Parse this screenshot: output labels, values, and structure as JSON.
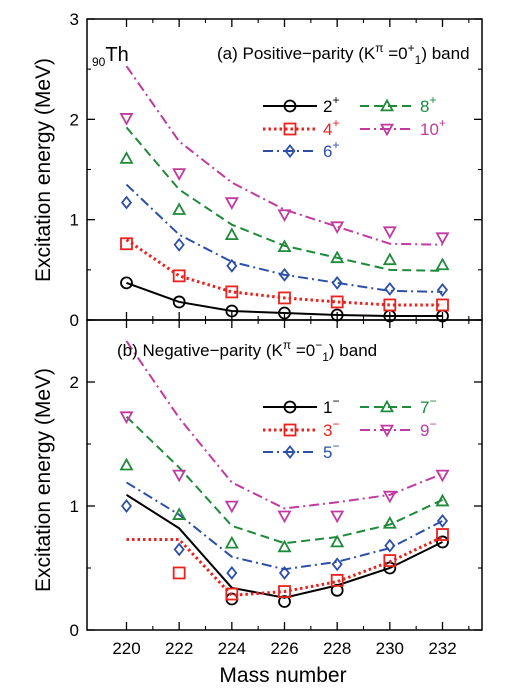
{
  "chart_data": [
    {
      "type": "line",
      "panel_label": "(a)",
      "title_prefix": "(a) Positive−parity (K",
      "title_sup1": "π",
      "title_mid": " =0",
      "title_sup2": "+",
      "title_sub": "1",
      "title_suffix": ") band",
      "nucleus_sub": "90",
      "nucleus": "Th",
      "ylabel": "Excitation energy (MeV)",
      "xlim": [
        218.5,
        233.5
      ],
      "ylim": [
        0,
        3
      ],
      "yticks": [
        0,
        1,
        2,
        3
      ],
      "x": [
        220,
        222,
        224,
        226,
        228,
        230,
        232
      ],
      "series": [
        {
          "name_base": "2",
          "name_sup": "+",
          "color": "#000000",
          "marker": "circle",
          "dash": "solid",
          "points": [
            0.37,
            0.18,
            0.09,
            0.07,
            0.05,
            0.04,
            0.04
          ],
          "line": [
            0.37,
            0.18,
            0.09,
            0.07,
            0.05,
            0.04,
            0.04
          ]
        },
        {
          "name_base": "4",
          "name_sup": "+",
          "color": "#e8231f",
          "marker": "square",
          "dash": "dotted",
          "points": [
            0.76,
            0.44,
            0.28,
            0.22,
            0.18,
            0.15,
            0.15
          ],
          "line": [
            0.8,
            0.44,
            0.28,
            0.22,
            0.18,
            0.15,
            0.15
          ]
        },
        {
          "name_base": "6",
          "name_sup": "+",
          "color": "#2c4fa8",
          "marker": "diamond",
          "dash": "dashdot",
          "points": [
            1.17,
            0.75,
            0.54,
            0.45,
            0.37,
            0.31,
            0.3
          ],
          "line": [
            1.35,
            0.85,
            0.58,
            0.45,
            0.37,
            0.29,
            0.28
          ]
        },
        {
          "name_base": "8",
          "name_sup": "+",
          "color": "#1e8a3a",
          "marker": "triangle-up",
          "dash": "dashed",
          "points": [
            1.61,
            1.1,
            0.85,
            0.73,
            0.62,
            0.6,
            0.55
          ],
          "line": [
            1.92,
            1.3,
            0.95,
            0.74,
            0.62,
            0.5,
            0.49
          ]
        },
        {
          "name_base": "10",
          "name_sup": "+",
          "color": "#c03aa0",
          "marker": "triangle-down",
          "dash": "dashdot",
          "points": [
            2.01,
            1.46,
            1.17,
            1.05,
            0.93,
            0.88,
            0.82
          ],
          "line": [
            2.53,
            1.78,
            1.37,
            1.1,
            0.93,
            0.76,
            0.75
          ]
        }
      ]
    },
    {
      "type": "line",
      "panel_label": "(b)",
      "title_prefix": "(b) Negative−parity (K",
      "title_sup1": "π",
      "title_mid": " =0",
      "title_sup2": "−",
      "title_sub": "1",
      "title_suffix": ") band",
      "ylabel": "Excitation energy (MeV)",
      "xlabel": "Mass number",
      "xlim": [
        218.5,
        233.5
      ],
      "ylim": [
        0,
        2.5
      ],
      "yticks": [
        0,
        1,
        2
      ],
      "x": [
        220,
        222,
        224,
        226,
        228,
        230,
        232
      ],
      "series": [
        {
          "name_base": "1",
          "name_sup": "−",
          "color": "#000000",
          "marker": "circle",
          "dash": "solid",
          "points": [
            null,
            null,
            0.25,
            0.23,
            0.32,
            0.5,
            0.71
          ],
          "line": [
            1.09,
            0.82,
            0.34,
            0.26,
            0.36,
            0.5,
            0.71
          ]
        },
        {
          "name_base": "3",
          "name_sup": "−",
          "color": "#e8231f",
          "marker": "square",
          "dash": "dotted",
          "points": [
            null,
            0.46,
            0.29,
            0.31,
            0.4,
            0.56,
            0.77
          ],
          "line": [
            0.73,
            0.73,
            0.28,
            0.31,
            0.39,
            0.55,
            0.75
          ]
        },
        {
          "name_base": "5",
          "name_sup": "−",
          "color": "#2c4fa8",
          "marker": "diamond",
          "dash": "dashdot",
          "points": [
            1.0,
            0.65,
            0.46,
            0.46,
            0.53,
            0.68,
            0.88
          ],
          "line": [
            1.19,
            0.93,
            0.59,
            0.49,
            0.55,
            0.66,
            0.88
          ]
        },
        {
          "name_base": "7",
          "name_sup": "−",
          "color": "#1e8a3a",
          "marker": "triangle-up",
          "dash": "dashed",
          "points": [
            1.33,
            0.93,
            0.7,
            0.67,
            0.71,
            0.86,
            1.04
          ],
          "line": [
            1.72,
            1.31,
            0.84,
            0.7,
            0.75,
            0.85,
            1.05
          ]
        },
        {
          "name_base": "9",
          "name_sup": "−",
          "color": "#c03aa0",
          "marker": "triangle-down",
          "dash": "dashdot",
          "points": [
            1.72,
            1.25,
            1.0,
            0.92,
            0.92,
            1.08,
            1.25
          ],
          "line": [
            2.33,
            1.71,
            1.19,
            0.98,
            1.03,
            1.09,
            1.26
          ]
        }
      ]
    }
  ]
}
